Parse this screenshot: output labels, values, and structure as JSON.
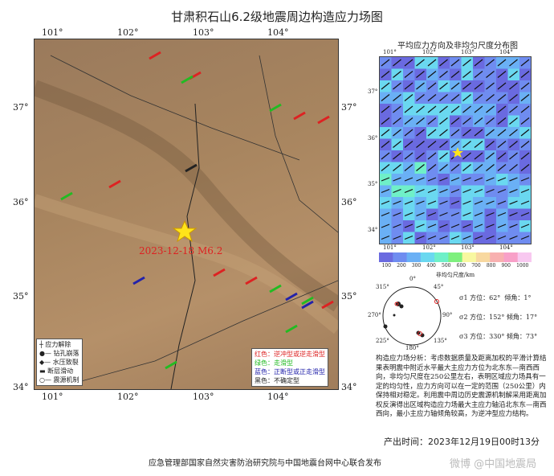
{
  "title": "甘肃积石山6.2级地震周边构造应力场图",
  "main_map": {
    "lon_ticks": [
      "101°",
      "102°",
      "103°",
      "104°"
    ],
    "lat_ticks": [
      "37°",
      "36°",
      "35°",
      "34°"
    ],
    "epicenter_label": "2023-12-18 M6.2",
    "method_legend": [
      "应力解除",
      "钻孔崩落",
      "水压致裂",
      "断层滑动",
      "震源机制"
    ],
    "regime_legend": [
      {
        "text": "红色：逆冲型或逆走滑型",
        "color": "#d22"
      },
      {
        "text": "绿色：走滑型",
        "color": "#2b2"
      },
      {
        "text": "蓝色：正断型或正走滑型",
        "color": "#22a"
      },
      {
        "text": "黑色：不确定型",
        "color": "#222"
      }
    ]
  },
  "inset_map": {
    "title": "平均应力方向及非均匀尺度分布图",
    "lon_ticks": [
      "101°",
      "102°",
      "103°",
      "104°"
    ],
    "lat_ticks": [
      "37°",
      "36°",
      "35°",
      "34°"
    ],
    "colorbar_ticks": [
      "100",
      "200",
      "300",
      "400",
      "500",
      "600",
      "700",
      "800",
      "900",
      "1000"
    ],
    "colorbar_label": "非均匀尺度/km"
  },
  "stereonet": {
    "labels": [
      "0°",
      "45°",
      "90°",
      "135°",
      "180°",
      "225°",
      "270°",
      "315°"
    ],
    "sigma": [
      {
        "name": "σ1",
        "azimuth": "方位：62°",
        "plunge": "倾角：1°"
      },
      {
        "name": "σ2",
        "azimuth": "方位：152°",
        "plunge": "倾角：17°"
      },
      {
        "name": "σ3",
        "azimuth": "方位：330°",
        "plunge": "倾角：73°"
      }
    ]
  },
  "analysis": "构造应力场分析：考虑数据质量及距离加权的平滑计算结果表明震中附近水平最大主应力方位为北东东—南西西向，非均匀尺度在250公里左右，表明区域应力场具有一定的均匀性，应力方向可以在一定的范围（250公里）内保持相对稳定。利用震中周边历史震源机制解采用距离加权反演得出区域构造应力场最大主应力轴沿北东东—南西西向，最小主应力轴倾角较高，为逆冲型应力结构。",
  "production_time": "产出时间：2023年12月19日00时13分",
  "footer": "应急管理部国家自然灾害防治研究院与中国地震台网中心联合发布",
  "watermark": "微博 @中国地震局"
}
